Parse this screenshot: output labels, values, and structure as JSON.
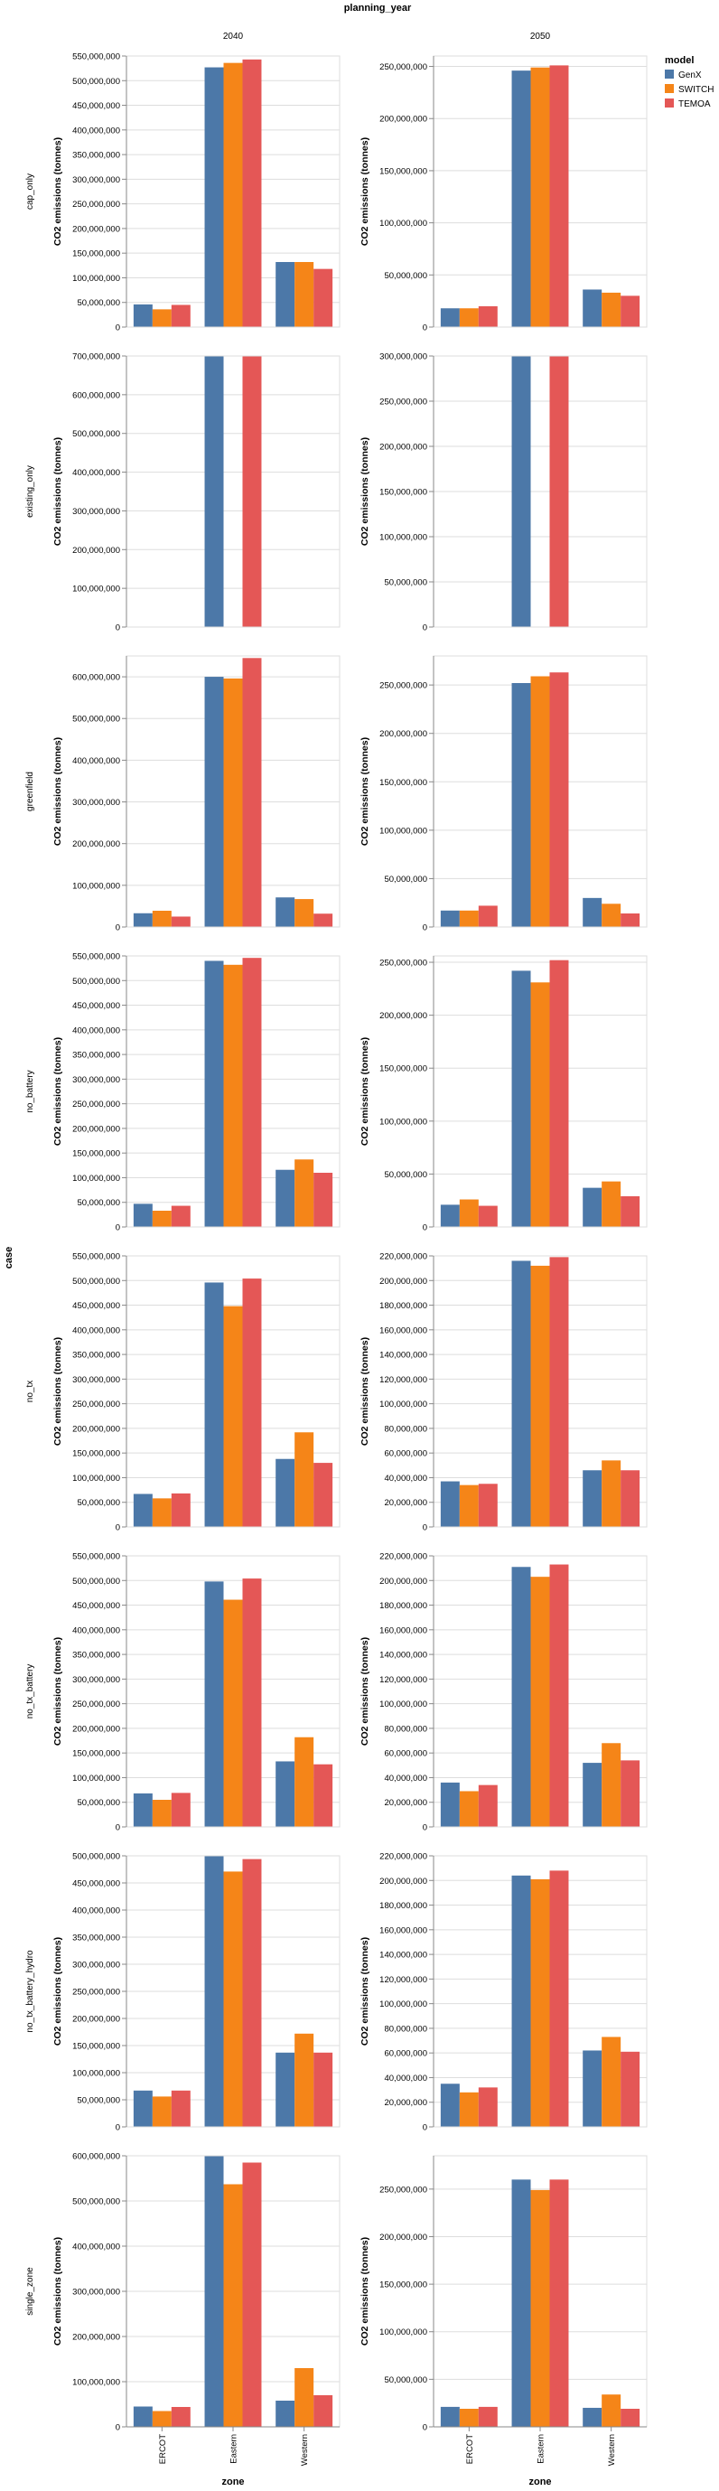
{
  "chart_data": {
    "type": "bar",
    "title": "planning_year",
    "row_title": "case",
    "xlabel": "zone",
    "ylabel": "CO2 emissions (tonnes)",
    "columns": [
      "2040",
      "2050"
    ],
    "rows": [
      "cap_only",
      "existing_only",
      "greenfield",
      "no_battery",
      "no_tx",
      "no_tx_battery",
      "no_tx_battery_hydro",
      "single_zone"
    ],
    "categories": [
      "ERCOT",
      "Eastern",
      "Western"
    ],
    "legend": {
      "title": "model",
      "position": "top-right",
      "entries": [
        {
          "name": "GenX",
          "color": "#4c78a8"
        },
        {
          "name": "SWITCH",
          "color": "#f58518"
        },
        {
          "name": "TEMOA",
          "color": "#e45756"
        }
      ]
    },
    "grid": true,
    "panels": [
      {
        "row": "cap_only",
        "column": "2040",
        "ylim": [
          0,
          550000000
        ],
        "ytick_step": 50000000,
        "series": [
          {
            "name": "GenX",
            "values": [
              46000000,
              527000000,
              132000000
            ]
          },
          {
            "name": "SWITCH",
            "values": [
              36000000,
              536000000,
              132000000
            ]
          },
          {
            "name": "TEMOA",
            "values": [
              45000000,
              543000000,
              118000000
            ]
          }
        ]
      },
      {
        "row": "cap_only",
        "column": "2050",
        "ylim": [
          0,
          260000000
        ],
        "ytick_step": 50000000,
        "series": [
          {
            "name": "GenX",
            "values": [
              18000000,
              246000000,
              36000000
            ]
          },
          {
            "name": "SWITCH",
            "values": [
              18000000,
              249000000,
              33000000
            ]
          },
          {
            "name": "TEMOA",
            "values": [
              20000000,
              251000000,
              30000000
            ]
          }
        ]
      },
      {
        "row": "existing_only",
        "column": "2040",
        "ylim": [
          0,
          700000000
        ],
        "ytick_step": 100000000,
        "series": [
          {
            "name": "GenX",
            "values": [
              null,
              700000000,
              null
            ]
          },
          {
            "name": "SWITCH",
            "values": [
              null,
              null,
              null
            ]
          },
          {
            "name": "TEMOA",
            "values": [
              null,
              700000000,
              null
            ]
          }
        ]
      },
      {
        "row": "existing_only",
        "column": "2050",
        "ylim": [
          0,
          300000000
        ],
        "ytick_step": 50000000,
        "series": [
          {
            "name": "GenX",
            "values": [
              null,
              300000000,
              null
            ]
          },
          {
            "name": "SWITCH",
            "values": [
              null,
              null,
              null
            ]
          },
          {
            "name": "TEMOA",
            "values": [
              null,
              300000000,
              null
            ]
          }
        ]
      },
      {
        "row": "greenfield",
        "column": "2040",
        "ylim": [
          0,
          650000000
        ],
        "ytick_step": 100000000,
        "series": [
          {
            "name": "GenX",
            "values": [
              33000000,
              600000000,
              71000000
            ]
          },
          {
            "name": "SWITCH",
            "values": [
              39000000,
              596000000,
              67000000
            ]
          },
          {
            "name": "TEMOA",
            "values": [
              25000000,
              645000000,
              32000000
            ]
          }
        ]
      },
      {
        "row": "greenfield",
        "column": "2050",
        "ylim": [
          0,
          280000000
        ],
        "ytick_step": 50000000,
        "series": [
          {
            "name": "GenX",
            "values": [
              17000000,
              252000000,
              30000000
            ]
          },
          {
            "name": "SWITCH",
            "values": [
              17000000,
              259000000,
              24000000
            ]
          },
          {
            "name": "TEMOA",
            "values": [
              22000000,
              263000000,
              14000000
            ]
          }
        ]
      },
      {
        "row": "no_battery",
        "column": "2040",
        "ylim": [
          0,
          550000000
        ],
        "ytick_step": 50000000,
        "series": [
          {
            "name": "GenX",
            "values": [
              47000000,
              540000000,
              116000000
            ]
          },
          {
            "name": "SWITCH",
            "values": [
              33000000,
              532000000,
              137000000
            ]
          },
          {
            "name": "TEMOA",
            "values": [
              43000000,
              546000000,
              110000000
            ]
          }
        ]
      },
      {
        "row": "no_battery",
        "column": "2050",
        "ylim": [
          0,
          256000000
        ],
        "ytick_step": 50000000,
        "series": [
          {
            "name": "GenX",
            "values": [
              21000000,
              242000000,
              37000000
            ]
          },
          {
            "name": "SWITCH",
            "values": [
              26000000,
              231000000,
              43000000
            ]
          },
          {
            "name": "TEMOA",
            "values": [
              20000000,
              252000000,
              29000000
            ]
          }
        ]
      },
      {
        "row": "no_tx",
        "column": "2040",
        "ylim": [
          0,
          550000000
        ],
        "ytick_step": 50000000,
        "series": [
          {
            "name": "GenX",
            "values": [
              67000000,
              496000000,
              138000000
            ]
          },
          {
            "name": "SWITCH",
            "values": [
              58000000,
              448000000,
              192000000
            ]
          },
          {
            "name": "TEMOA",
            "values": [
              68000000,
              504000000,
              130000000
            ]
          }
        ]
      },
      {
        "row": "no_tx",
        "column": "2050",
        "ylim": [
          0,
          220000000
        ],
        "ytick_step": 20000000,
        "series": [
          {
            "name": "GenX",
            "values": [
              37000000,
              216000000,
              46000000
            ]
          },
          {
            "name": "SWITCH",
            "values": [
              34000000,
              212000000,
              54000000
            ]
          },
          {
            "name": "TEMOA",
            "values": [
              35000000,
              219000000,
              46000000
            ]
          }
        ]
      },
      {
        "row": "no_tx_battery",
        "column": "2040",
        "ylim": [
          0,
          550000000
        ],
        "ytick_step": 50000000,
        "series": [
          {
            "name": "GenX",
            "values": [
              68000000,
              498000000,
              133000000
            ]
          },
          {
            "name": "SWITCH",
            "values": [
              55000000,
              461000000,
              182000000
            ]
          },
          {
            "name": "TEMOA",
            "values": [
              69000000,
              504000000,
              127000000
            ]
          }
        ]
      },
      {
        "row": "no_tx_battery",
        "column": "2050",
        "ylim": [
          0,
          220000000
        ],
        "ytick_step": 20000000,
        "series": [
          {
            "name": "GenX",
            "values": [
              36000000,
              211000000,
              52000000
            ]
          },
          {
            "name": "SWITCH",
            "values": [
              29000000,
              203000000,
              68000000
            ]
          },
          {
            "name": "TEMOA",
            "values": [
              34000000,
              213000000,
              54000000
            ]
          }
        ]
      },
      {
        "row": "no_tx_battery_hydro",
        "column": "2040",
        "ylim": [
          0,
          500000000
        ],
        "ytick_step": 50000000,
        "series": [
          {
            "name": "GenX",
            "values": [
              67000000,
              500000000,
              137000000
            ]
          },
          {
            "name": "SWITCH",
            "values": [
              56000000,
              471000000,
              172000000
            ]
          },
          {
            "name": "TEMOA",
            "values": [
              67000000,
              494000000,
              137000000
            ]
          }
        ]
      },
      {
        "row": "no_tx_battery_hydro",
        "column": "2050",
        "ylim": [
          0,
          220000000
        ],
        "ytick_step": 20000000,
        "series": [
          {
            "name": "GenX",
            "values": [
              35000000,
              204000000,
              62000000
            ]
          },
          {
            "name": "SWITCH",
            "values": [
              28000000,
              201000000,
              73000000
            ]
          },
          {
            "name": "TEMOA",
            "values": [
              32000000,
              208000000,
              61000000
            ]
          }
        ]
      },
      {
        "row": "single_zone",
        "column": "2040",
        "ylim": [
          0,
          600000000
        ],
        "ytick_step": 100000000,
        "series": [
          {
            "name": "GenX",
            "values": [
              45000000,
              600000000,
              58000000
            ]
          },
          {
            "name": "SWITCH",
            "values": [
              35000000,
              537000000,
              130000000
            ]
          },
          {
            "name": "TEMOA",
            "values": [
              44000000,
              585000000,
              70000000
            ]
          }
        ]
      },
      {
        "row": "single_zone",
        "column": "2050",
        "ylim": [
          0,
          285000000
        ],
        "ytick_step": 50000000,
        "series": [
          {
            "name": "GenX",
            "values": [
              21000000,
              260000000,
              20000000
            ]
          },
          {
            "name": "SWITCH",
            "values": [
              19000000,
              249000000,
              34000000
            ]
          },
          {
            "name": "TEMOA",
            "values": [
              21000000,
              260000000,
              19000000
            ]
          }
        ]
      }
    ]
  }
}
